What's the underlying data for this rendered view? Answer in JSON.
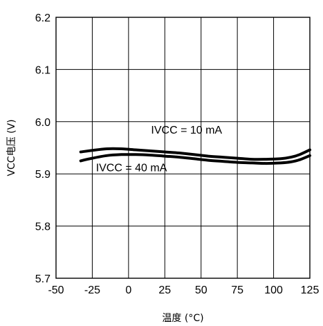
{
  "chart_data": {
    "type": "line",
    "xlabel": "温度 (°C)",
    "ylabel": "VCC电压 (V)",
    "xlim": [
      -50,
      125
    ],
    "ylim": [
      5.7,
      6.2
    ],
    "x_ticks": [
      "-50",
      "-25",
      "0",
      "25",
      "50",
      "75",
      "100",
      "125"
    ],
    "y_ticks": [
      "6.2",
      "6.1",
      "6.0",
      "5.9",
      "5.8",
      "5.7"
    ],
    "grid": true,
    "series": [
      {
        "name": "IVCC = 10 mA",
        "x": [
          -33,
          -25,
          -15,
          -5,
          5,
          15,
          25,
          35,
          45,
          55,
          65,
          75,
          85,
          95,
          105,
          112,
          118,
          125
        ],
        "y": [
          5.942,
          5.945,
          5.948,
          5.948,
          5.946,
          5.944,
          5.942,
          5.94,
          5.937,
          5.934,
          5.932,
          5.93,
          5.928,
          5.928,
          5.929,
          5.932,
          5.937,
          5.946
        ]
      },
      {
        "name": "IVCC = 40 mA",
        "x": [
          -33,
          -25,
          -15,
          -5,
          5,
          15,
          25,
          35,
          45,
          55,
          65,
          75,
          85,
          95,
          105,
          112,
          118,
          125
        ],
        "y": [
          5.925,
          5.93,
          5.935,
          5.937,
          5.937,
          5.936,
          5.934,
          5.932,
          5.929,
          5.926,
          5.924,
          5.922,
          5.921,
          5.92,
          5.921,
          5.923,
          5.927,
          5.935
        ]
      }
    ],
    "annotations": [
      {
        "text": "IVCC = 10 mA",
        "x": 40,
        "y": 5.977
      },
      {
        "text": "IVCC = 40 mA",
        "x": 2,
        "y": 5.905
      }
    ]
  }
}
